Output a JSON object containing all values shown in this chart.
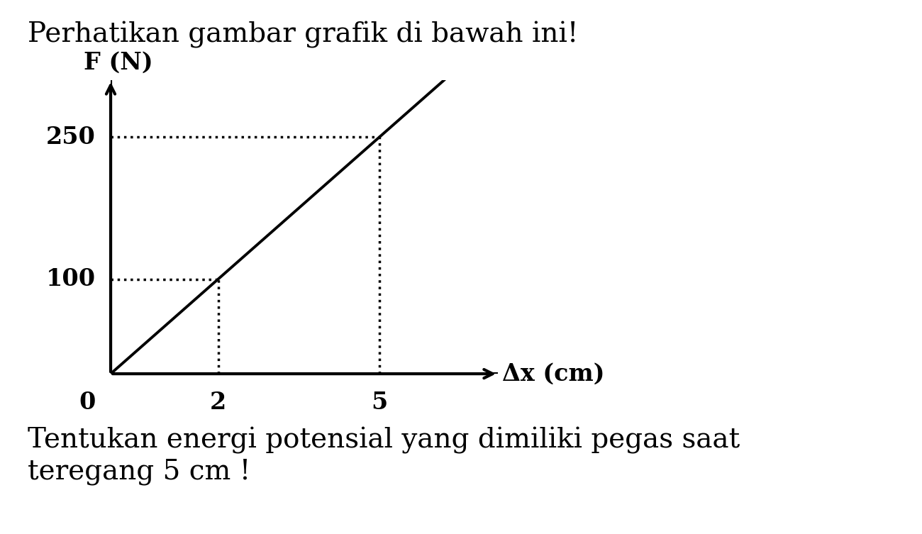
{
  "title_text": "Perhatikan gambar grafik di bawah ini!",
  "bottom_text": "Tentukan energi potensial yang dimiliki pegas saat\nteregang 5 cm !",
  "ylabel": "F (N)",
  "xlabel": "Δx (cm)",
  "line_x": [
    0,
    6.2
  ],
  "line_y": [
    0,
    310
  ],
  "point1_x": 2,
  "point1_y": 100,
  "point2_x": 5,
  "point2_y": 250,
  "yticks": [
    100,
    250
  ],
  "xticks": [
    2,
    5
  ],
  "xlim": [
    0,
    7.2
  ],
  "ylim": [
    0,
    310
  ],
  "line_color": "#000000",
  "dot_color": "#000000",
  "bg_color": "#ffffff",
  "text_color": "#000000",
  "title_fontsize": 28,
  "bottom_fontsize": 28,
  "label_fontsize": 24,
  "tick_fontsize": 24,
  "axis_linewidth": 3.0,
  "line_linewidth": 2.8
}
